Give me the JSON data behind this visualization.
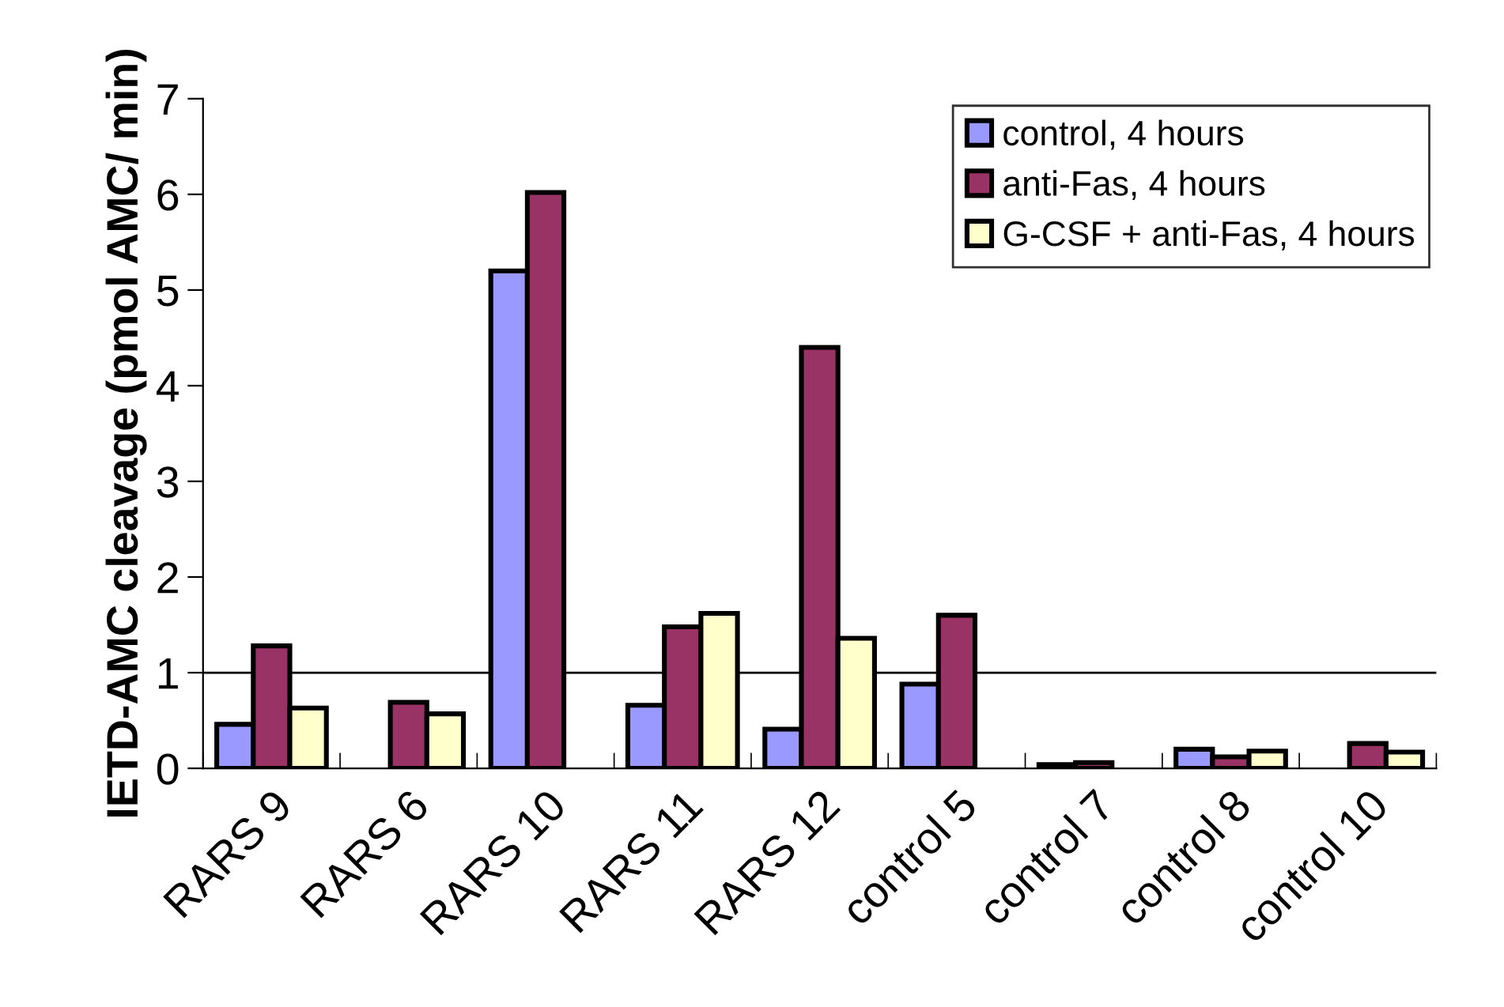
{
  "chart_data": {
    "type": "bar",
    "ylabel": "IETD-AMC cleavage (pmol AMC/ min)",
    "categories": [
      "RARS 9",
      "RARS 6",
      "RARS 10",
      "RARS 11",
      "RARS 12",
      "control 5",
      "control 7",
      "control 8",
      "control 10"
    ],
    "series": [
      {
        "name": "control, 4 hours",
        "color": "#9999ff",
        "values": [
          0.46,
          null,
          5.2,
          0.66,
          0.41,
          0.88,
          0.04,
          0.2,
          null
        ]
      },
      {
        "name": "anti-Fas, 4 hours",
        "color": "#993366",
        "values": [
          1.28,
          0.69,
          6.02,
          1.48,
          4.4,
          1.6,
          0.06,
          0.12,
          0.26
        ]
      },
      {
        "name": "G-CSF + anti-Fas, 4 hours",
        "color": "#ffffcc",
        "values": [
          0.63,
          0.57,
          null,
          1.62,
          1.36,
          null,
          null,
          0.18,
          0.17
        ]
      }
    ],
    "ylim": [
      0,
      7
    ],
    "yticks": [
      0,
      1,
      2,
      3,
      4,
      5,
      6,
      7
    ],
    "ref_lines": [
      {
        "axis": "y",
        "value": 1,
        "label": null,
        "color": "#000000"
      }
    ],
    "grid": false,
    "legend": "top right"
  }
}
